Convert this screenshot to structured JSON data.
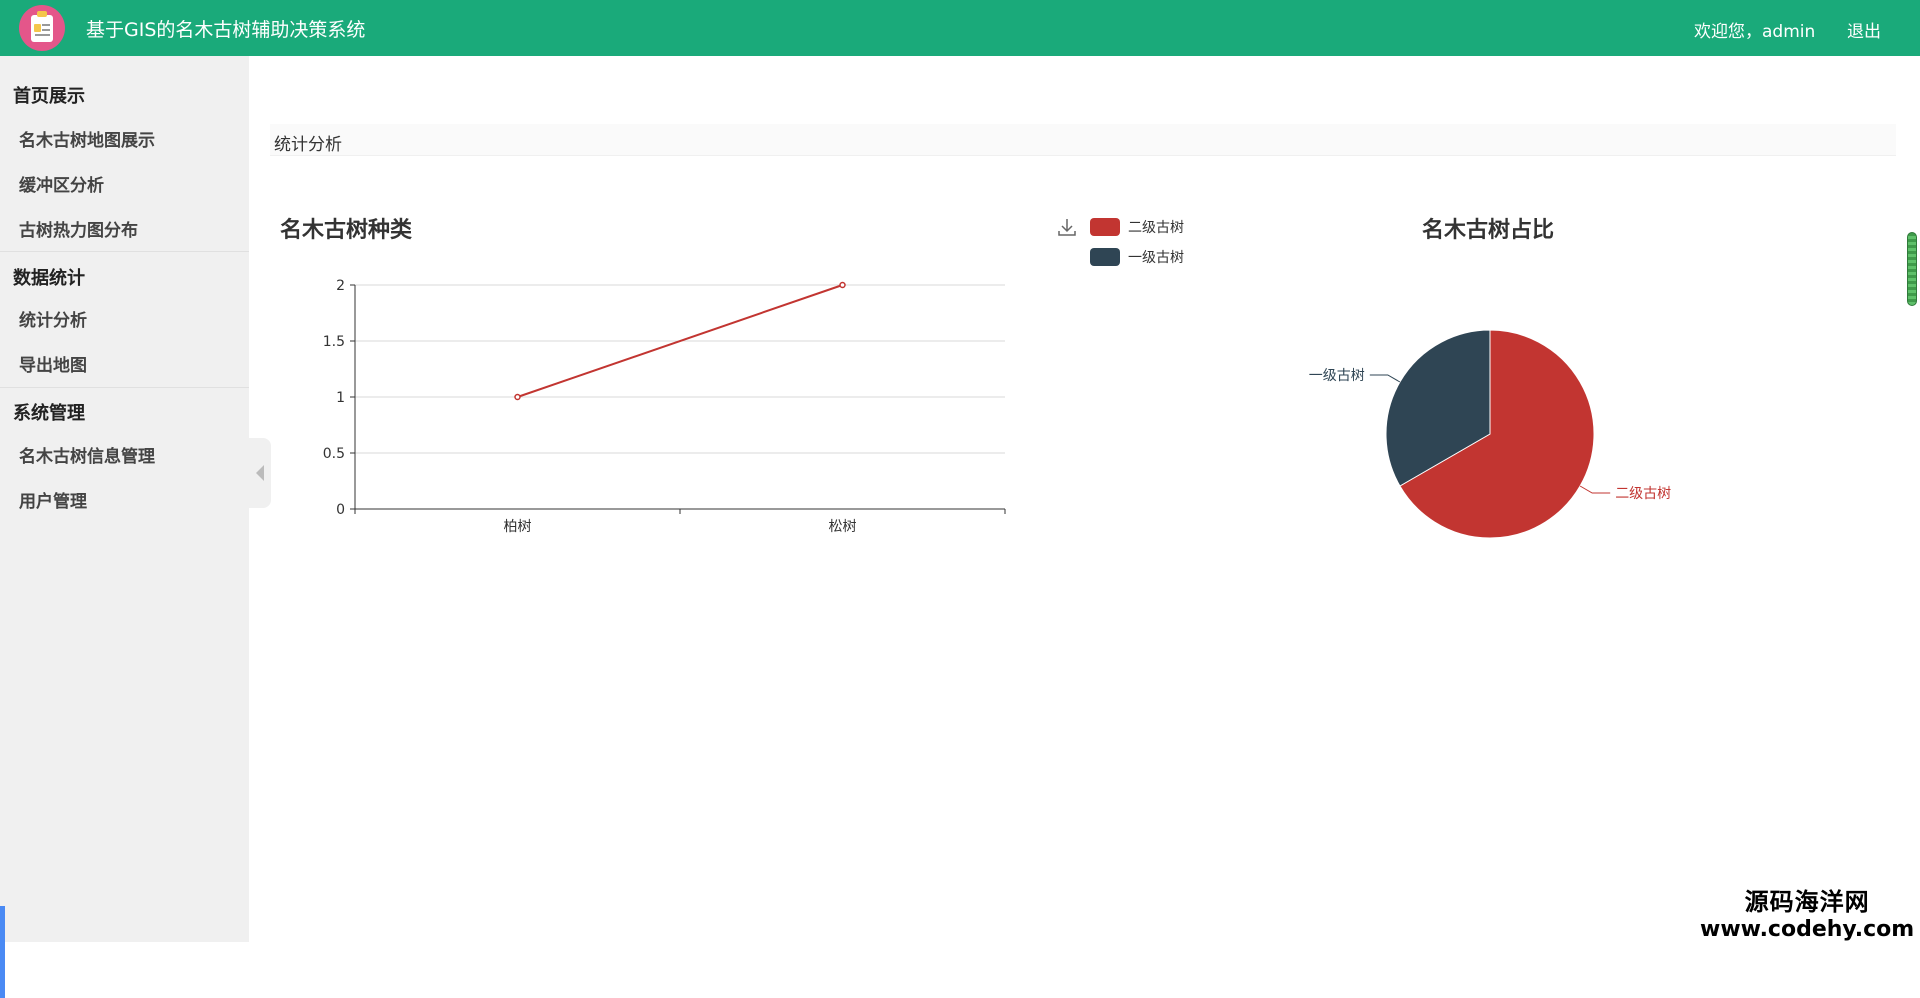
{
  "header": {
    "title": "基于GIS的名木古树辅助决策系统",
    "welcome": "欢迎您，admin",
    "logout": "退出"
  },
  "sidebar": {
    "groups": [
      {
        "title": "首页展示",
        "items": [
          "名木古树地图展示",
          "缓冲区分析",
          "古树热力图分布"
        ]
      },
      {
        "title": "数据统计",
        "items": [
          "统计分析",
          "导出地图"
        ]
      },
      {
        "title": "系统管理",
        "items": [
          "名木古树信息管理",
          "用户管理"
        ]
      }
    ]
  },
  "breadcrumb": "统计分析",
  "legend": [
    {
      "name": "二级古树",
      "color": "#c23531"
    },
    {
      "name": "一级古树",
      "color": "#2f4554"
    }
  ],
  "chart_data": [
    {
      "type": "line",
      "title": "名木古树种类",
      "categories": [
        "柏树",
        "松树"
      ],
      "values": [
        1,
        2
      ],
      "yticks": [
        "0",
        "0.5",
        "1",
        "1.5",
        "2"
      ],
      "ylim": [
        0,
        2
      ],
      "grid": true,
      "color": "#c23531"
    },
    {
      "type": "pie",
      "title": "名木古树占比",
      "slices": [
        {
          "name": "二级古树",
          "value": 2,
          "color": "#c23531"
        },
        {
          "name": "一级古树",
          "value": 1,
          "color": "#2f4554"
        }
      ]
    }
  ],
  "watermark": {
    "name": "源码海洋网",
    "url": "www.codehy.com"
  }
}
